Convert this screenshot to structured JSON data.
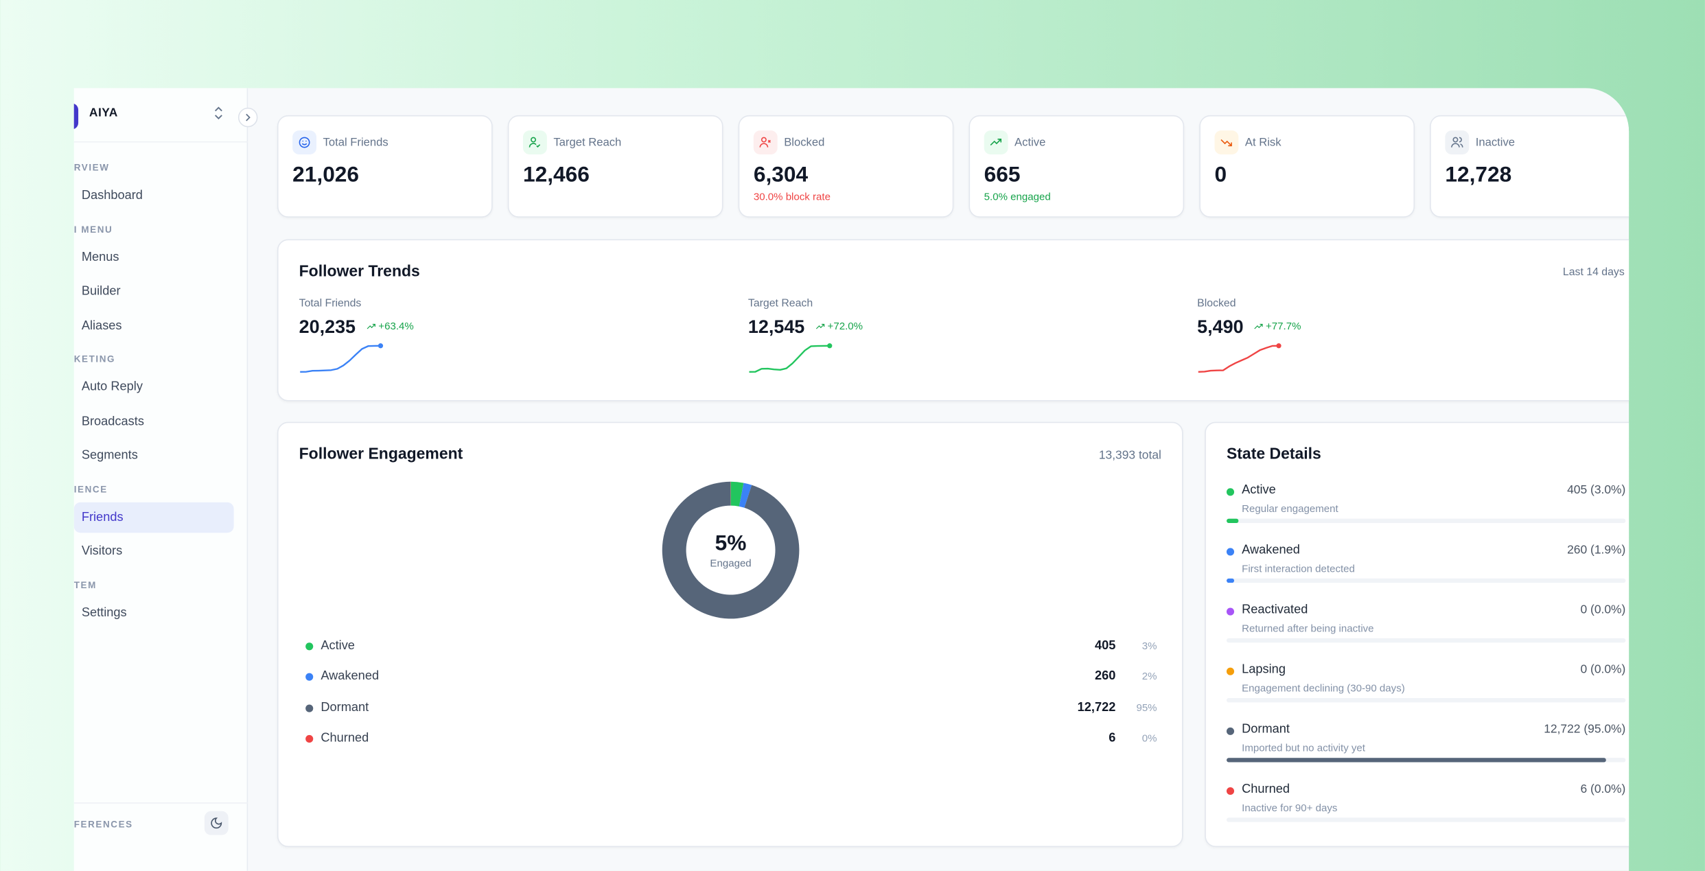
{
  "sidebar": {
    "brand": "AIYA",
    "sections": [
      {
        "label": "RVIEW",
        "items": [
          {
            "label": "Dashboard"
          }
        ]
      },
      {
        "label": "I MENU",
        "items": [
          {
            "label": "Menus"
          },
          {
            "label": "Builder"
          },
          {
            "label": "Aliases"
          }
        ]
      },
      {
        "label": "KETING",
        "items": [
          {
            "label": "Auto Reply"
          },
          {
            "label": "Broadcasts"
          },
          {
            "label": "Segments"
          }
        ]
      },
      {
        "label": "IENCE",
        "items": [
          {
            "label": "Friends",
            "active": true
          },
          {
            "label": "Visitors"
          }
        ]
      },
      {
        "label": "TEM",
        "items": [
          {
            "label": "Settings"
          }
        ]
      }
    ],
    "footer_label": "FERENCES",
    "theme_icon": "moon-icon"
  },
  "kpis": [
    {
      "label": "Total Friends",
      "value": "21,026",
      "sub": "",
      "icon": "smile-icon",
      "color": "#2563eb",
      "bg": "#eaf1fe"
    },
    {
      "label": "Target Reach",
      "value": "12,466",
      "sub": "",
      "icon": "user-check-icon",
      "color": "#16a34a",
      "bg": "#eafbf0"
    },
    {
      "label": "Blocked",
      "value": "6,304",
      "sub": "30.0% block rate",
      "icon": "user-x-icon",
      "color": "#ef4444",
      "bg": "#fdeeee"
    },
    {
      "label": "Active",
      "value": "665",
      "sub": "5.0% engaged",
      "icon": "trending-up-icon",
      "color": "#16a34a",
      "bg": "#eafbf0"
    },
    {
      "label": "At Risk",
      "value": "0",
      "sub": "",
      "icon": "trending-down-icon",
      "color": "#ea580c",
      "bg": "#fff6e5"
    },
    {
      "label": "Inactive",
      "value": "12,728",
      "sub": "",
      "icon": "users-icon",
      "color": "#64748b",
      "bg": "#eff2f6"
    }
  ],
  "trends": {
    "title": "Follower Trends",
    "range": "Last 14 days"
  },
  "engagement": {
    "title": "Follower Engagement",
    "total": "13,393 total",
    "center_value": "5%",
    "center_label": "Engaged",
    "legend": [
      {
        "label": "Active",
        "value": "405",
        "pct": "3%"
      },
      {
        "label": "Awakened",
        "value": "260",
        "pct": "2%"
      },
      {
        "label": "Dormant",
        "value": "12,722",
        "pct": "95%"
      },
      {
        "label": "Churned",
        "value": "6",
        "pct": "0%"
      }
    ]
  },
  "state": {
    "title": "State Details",
    "rows": [
      {
        "name": "Active",
        "value": "405 (3.0%)",
        "desc": "Regular engagement",
        "color": "#22c55e",
        "pct": 3.0
      },
      {
        "name": "Awakened",
        "value": "260 (1.9%)",
        "desc": "First interaction detected",
        "color": "#3b82f6",
        "pct": 1.9
      },
      {
        "name": "Reactivated",
        "value": "0 (0.0%)",
        "desc": "Returned after being inactive",
        "color": "#a855f7",
        "pct": 0
      },
      {
        "name": "Lapsing",
        "value": "0 (0.0%)",
        "desc": "Engagement declining (30-90 days)",
        "color": "#f59e0b",
        "pct": 0
      },
      {
        "name": "Dormant",
        "value": "12,722 (95.0%)",
        "desc": "Imported but no activity yet",
        "color": "#566579",
        "pct": 95.0
      },
      {
        "name": "Churned",
        "value": "6 (0.0%)",
        "desc": "Inactive for 90+ days",
        "color": "#ef4444",
        "pct": 0
      }
    ]
  },
  "chart_data": [
    {
      "type": "line",
      "label": "Total Friends",
      "value": "20,235",
      "change": "+63.4%",
      "color": "#3b82f6",
      "values": [
        12380,
        12400,
        12700,
        12750,
        12800,
        12900,
        13300,
        14300,
        15800,
        17600,
        19300,
        20150,
        20200,
        20235
      ]
    },
    {
      "type": "line",
      "label": "Target Reach",
      "value": "12,545",
      "change": "+72.0%",
      "color": "#22c55e",
      "values": [
        7290,
        7320,
        7900,
        7950,
        7800,
        7700,
        8000,
        9000,
        10300,
        11600,
        12450,
        12500,
        12530,
        12545
      ]
    },
    {
      "type": "line",
      "label": "Blocked",
      "value": "5,490",
      "change": "+77.7%",
      "color": "#ef4444",
      "values": [
        3090,
        3110,
        3200,
        3220,
        3230,
        3600,
        3900,
        4150,
        4400,
        4750,
        5100,
        5300,
        5480,
        5490
      ]
    },
    {
      "type": "pie",
      "title": "Follower Engagement",
      "categories": [
        "Active",
        "Awakened",
        "Dormant",
        "Churned"
      ],
      "values": [
        405,
        260,
        12722,
        6
      ],
      "colors": [
        "#22c55e",
        "#3b82f6",
        "#566579",
        "#ef4444"
      ]
    }
  ]
}
